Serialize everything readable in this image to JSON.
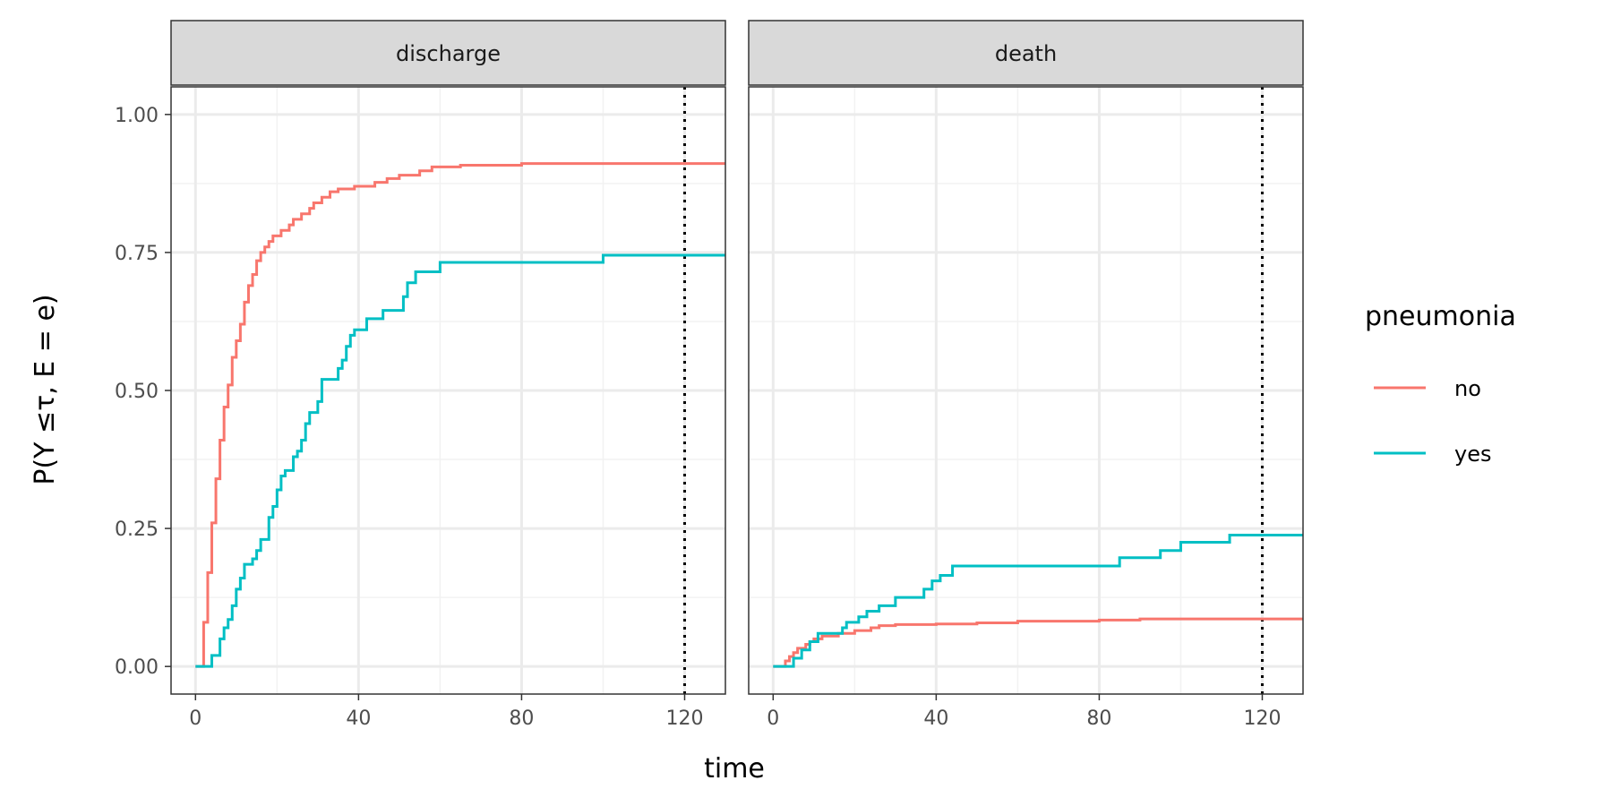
{
  "chart_data": {
    "type": "line",
    "subtype": "step",
    "xlabel": "time",
    "ylabel": "P(Y ≤τ, E = e)",
    "xlim": [
      -6,
      130
    ],
    "ylim": [
      -0.05,
      1.05
    ],
    "x_ticks": [
      0,
      40,
      80,
      120
    ],
    "x_tick_labels": [
      "0",
      "40",
      "80",
      "120"
    ],
    "y_ticks": [
      0,
      0.25,
      0.5,
      0.75,
      1.0
    ],
    "y_tick_labels": [
      "0.00",
      "0.25",
      "0.50",
      "0.75",
      "1.00"
    ],
    "reference_line": {
      "x": 120,
      "style": "dotted",
      "color": "#000000"
    },
    "grid": true,
    "legend": {
      "title": "pneumonia",
      "position": "right",
      "entries": [
        {
          "key": "no",
          "label": "no",
          "color": "#F8766D"
        },
        {
          "key": "yes",
          "label": "yes",
          "color": "#00BFC4"
        }
      ]
    },
    "panels": [
      {
        "strip": "discharge",
        "series": [
          {
            "name": "no",
            "color": "#F8766D",
            "points": [
              [
                0,
                0
              ],
              [
                2,
                0
              ],
              [
                2,
                0.08
              ],
              [
                3,
                0.08
              ],
              [
                3,
                0.17
              ],
              [
                4,
                0.17
              ],
              [
                4,
                0.26
              ],
              [
                5,
                0.26
              ],
              [
                5,
                0.34
              ],
              [
                6,
                0.34
              ],
              [
                6,
                0.41
              ],
              [
                7,
                0.41
              ],
              [
                7,
                0.47
              ],
              [
                8,
                0.47
              ],
              [
                8,
                0.51
              ],
              [
                9,
                0.51
              ],
              [
                9,
                0.56
              ],
              [
                10,
                0.56
              ],
              [
                10,
                0.59
              ],
              [
                11,
                0.59
              ],
              [
                11,
                0.62
              ],
              [
                12,
                0.62
              ],
              [
                12,
                0.66
              ],
              [
                13,
                0.66
              ],
              [
                13,
                0.69
              ],
              [
                14,
                0.69
              ],
              [
                14,
                0.71
              ],
              [
                15,
                0.71
              ],
              [
                15,
                0.735
              ],
              [
                16,
                0.735
              ],
              [
                16,
                0.75
              ],
              [
                17,
                0.75
              ],
              [
                17,
                0.76
              ],
              [
                18,
                0.76
              ],
              [
                18,
                0.77
              ],
              [
                19,
                0.77
              ],
              [
                19,
                0.78
              ],
              [
                21,
                0.78
              ],
              [
                21,
                0.79
              ],
              [
                23,
                0.79
              ],
              [
                23,
                0.8
              ],
              [
                24,
                0.8
              ],
              [
                24,
                0.81
              ],
              [
                26,
                0.81
              ],
              [
                26,
                0.82
              ],
              [
                28,
                0.82
              ],
              [
                28,
                0.83
              ],
              [
                29,
                0.83
              ],
              [
                29,
                0.84
              ],
              [
                31,
                0.84
              ],
              [
                31,
                0.85
              ],
              [
                33,
                0.85
              ],
              [
                33,
                0.86
              ],
              [
                35,
                0.86
              ],
              [
                35,
                0.865
              ],
              [
                39,
                0.865
              ],
              [
                39,
                0.87
              ],
              [
                44,
                0.87
              ],
              [
                44,
                0.877
              ],
              [
                47,
                0.877
              ],
              [
                47,
                0.884
              ],
              [
                50,
                0.884
              ],
              [
                50,
                0.89
              ],
              [
                55,
                0.89
              ],
              [
                55,
                0.898
              ],
              [
                58,
                0.898
              ],
              [
                58,
                0.905
              ],
              [
                65,
                0.905
              ],
              [
                65,
                0.908
              ],
              [
                80,
                0.908
              ],
              [
                80,
                0.911
              ],
              [
                130,
                0.911
              ]
            ]
          },
          {
            "name": "yes",
            "color": "#00BFC4",
            "points": [
              [
                0,
                0
              ],
              [
                4,
                0
              ],
              [
                4,
                0.02
              ],
              [
                6,
                0.02
              ],
              [
                6,
                0.05
              ],
              [
                7,
                0.05
              ],
              [
                7,
                0.07
              ],
              [
                8,
                0.07
              ],
              [
                8,
                0.085
              ],
              [
                9,
                0.085
              ],
              [
                9,
                0.11
              ],
              [
                10,
                0.11
              ],
              [
                10,
                0.14
              ],
              [
                11,
                0.14
              ],
              [
                11,
                0.16
              ],
              [
                12,
                0.16
              ],
              [
                12,
                0.185
              ],
              [
                14,
                0.185
              ],
              [
                14,
                0.195
              ],
              [
                15,
                0.195
              ],
              [
                15,
                0.21
              ],
              [
                16,
                0.21
              ],
              [
                16,
                0.23
              ],
              [
                18,
                0.23
              ],
              [
                18,
                0.27
              ],
              [
                19,
                0.27
              ],
              [
                19,
                0.29
              ],
              [
                20,
                0.29
              ],
              [
                20,
                0.32
              ],
              [
                21,
                0.32
              ],
              [
                21,
                0.345
              ],
              [
                22,
                0.345
              ],
              [
                22,
                0.355
              ],
              [
                24,
                0.355
              ],
              [
                24,
                0.38
              ],
              [
                25,
                0.38
              ],
              [
                25,
                0.39
              ],
              [
                26,
                0.39
              ],
              [
                26,
                0.41
              ],
              [
                27,
                0.41
              ],
              [
                27,
                0.44
              ],
              [
                28,
                0.44
              ],
              [
                28,
                0.46
              ],
              [
                30,
                0.46
              ],
              [
                30,
                0.48
              ],
              [
                31,
                0.48
              ],
              [
                31,
                0.52
              ],
              [
                35,
                0.52
              ],
              [
                35,
                0.54
              ],
              [
                36,
                0.54
              ],
              [
                36,
                0.555
              ],
              [
                37,
                0.555
              ],
              [
                37,
                0.58
              ],
              [
                38,
                0.58
              ],
              [
                38,
                0.6
              ],
              [
                39,
                0.6
              ],
              [
                39,
                0.61
              ],
              [
                42,
                0.61
              ],
              [
                42,
                0.63
              ],
              [
                46,
                0.63
              ],
              [
                46,
                0.645
              ],
              [
                51,
                0.645
              ],
              [
                51,
                0.67
              ],
              [
                52,
                0.67
              ],
              [
                52,
                0.695
              ],
              [
                54,
                0.695
              ],
              [
                54,
                0.715
              ],
              [
                60,
                0.715
              ],
              [
                60,
                0.732
              ],
              [
                100,
                0.732
              ],
              [
                100,
                0.745
              ],
              [
                130,
                0.745
              ]
            ]
          }
        ]
      },
      {
        "strip": "death",
        "series": [
          {
            "name": "no",
            "color": "#F8766D",
            "points": [
              [
                0,
                0
              ],
              [
                3,
                0
              ],
              [
                3,
                0.01
              ],
              [
                4,
                0.01
              ],
              [
                4,
                0.018
              ],
              [
                5,
                0.018
              ],
              [
                5,
                0.025
              ],
              [
                6,
                0.025
              ],
              [
                6,
                0.033
              ],
              [
                8,
                0.033
              ],
              [
                8,
                0.04
              ],
              [
                9,
                0.04
              ],
              [
                9,
                0.045
              ],
              [
                10,
                0.045
              ],
              [
                10,
                0.05
              ],
              [
                12,
                0.05
              ],
              [
                12,
                0.055
              ],
              [
                16,
                0.055
              ],
              [
                16,
                0.06
              ],
              [
                20,
                0.06
              ],
              [
                20,
                0.065
              ],
              [
                24,
                0.065
              ],
              [
                24,
                0.07
              ],
              [
                26,
                0.07
              ],
              [
                26,
                0.074
              ],
              [
                30,
                0.074
              ],
              [
                30,
                0.076
              ],
              [
                40,
                0.076
              ],
              [
                40,
                0.077
              ],
              [
                50,
                0.077
              ],
              [
                50,
                0.079
              ],
              [
                60,
                0.079
              ],
              [
                60,
                0.082
              ],
              [
                80,
                0.082
              ],
              [
                80,
                0.084
              ],
              [
                90,
                0.084
              ],
              [
                90,
                0.086
              ],
              [
                130,
                0.086
              ]
            ]
          },
          {
            "name": "yes",
            "color": "#00BFC4",
            "points": [
              [
                0,
                0
              ],
              [
                5,
                0
              ],
              [
                5,
                0.015
              ],
              [
                7,
                0.015
              ],
              [
                7,
                0.03
              ],
              [
                9,
                0.03
              ],
              [
                9,
                0.045
              ],
              [
                11,
                0.045
              ],
              [
                11,
                0.06
              ],
              [
                17,
                0.06
              ],
              [
                17,
                0.07
              ],
              [
                18,
                0.07
              ],
              [
                18,
                0.08
              ],
              [
                21,
                0.08
              ],
              [
                21,
                0.09
              ],
              [
                23,
                0.09
              ],
              [
                23,
                0.1
              ],
              [
                26,
                0.1
              ],
              [
                26,
                0.11
              ],
              [
                30,
                0.11
              ],
              [
                30,
                0.125
              ],
              [
                37,
                0.125
              ],
              [
                37,
                0.14
              ],
              [
                39,
                0.14
              ],
              [
                39,
                0.155
              ],
              [
                41,
                0.155
              ],
              [
                41,
                0.165
              ],
              [
                44,
                0.165
              ],
              [
                44,
                0.182
              ],
              [
                85,
                0.182
              ],
              [
                85,
                0.197
              ],
              [
                95,
                0.197
              ],
              [
                95,
                0.21
              ],
              [
                100,
                0.21
              ],
              [
                100,
                0.225
              ],
              [
                112,
                0.225
              ],
              [
                112,
                0.238
              ],
              [
                130,
                0.238
              ]
            ]
          }
        ]
      }
    ]
  }
}
